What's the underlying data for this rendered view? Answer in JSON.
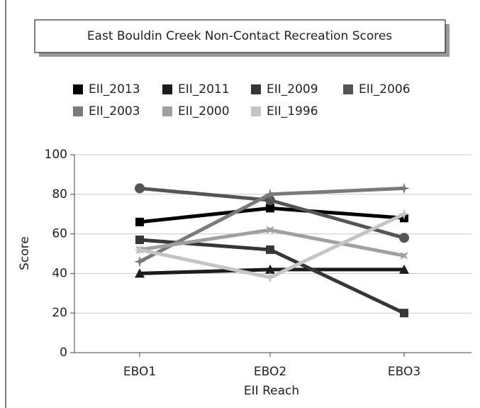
{
  "chart_data": {
    "type": "line",
    "title": "East Bouldin Creek Non-Contact Recreation Scores",
    "x_label": "EII Reach",
    "y_label": "Score",
    "categories": [
      "EBO1",
      "EBO2",
      "EBO3"
    ],
    "ylim": [
      0,
      100
    ],
    "yticks": [
      0,
      20,
      40,
      60,
      80,
      100
    ],
    "grid": true,
    "series": [
      {
        "name": "EII_2013",
        "color": "#000000",
        "marker": "square",
        "values": [
          66,
          73,
          68
        ]
      },
      {
        "name": "EII_2011",
        "color": "#1c1c1c",
        "marker": "triangle",
        "values": [
          40,
          42,
          42
        ]
      },
      {
        "name": "EII_2009",
        "color": "#363636",
        "marker": "square",
        "values": [
          57,
          52,
          20
        ]
      },
      {
        "name": "EII_2006",
        "color": "#555555",
        "marker": "circle",
        "values": [
          83,
          77,
          58
        ]
      },
      {
        "name": "EII_2003",
        "color": "#7a7a7a",
        "marker": "star",
        "values": [
          46,
          80,
          83
        ]
      },
      {
        "name": "EII_2000",
        "color": "#a0a0a0",
        "marker": "cross",
        "values": [
          52,
          62,
          49
        ]
      },
      {
        "name": "EII_1996",
        "color": "#c4c4c4",
        "marker": "star",
        "values": [
          52,
          38,
          70
        ]
      }
    ]
  }
}
